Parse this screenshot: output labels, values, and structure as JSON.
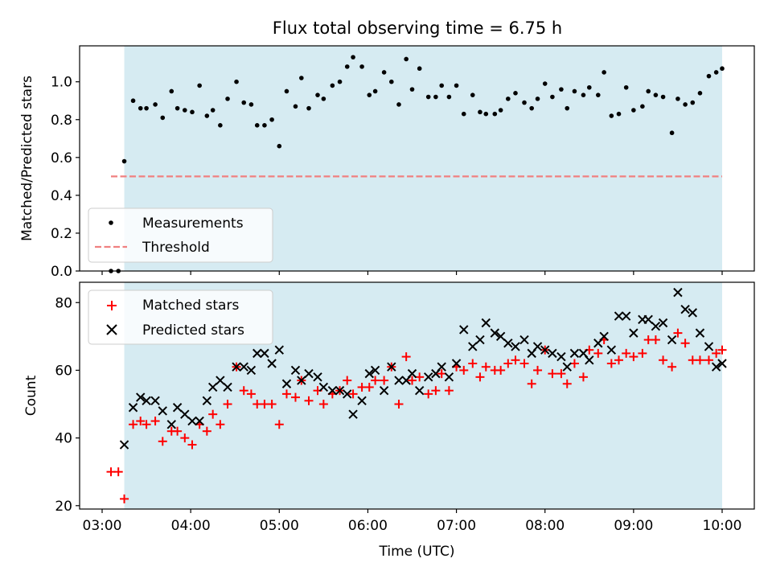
{
  "title": "Flux total observing time = 6.75 h",
  "colors": {
    "span": "#add8e6",
    "measurement": "#000000",
    "threshold": "#f08080",
    "matched": "#ff0000",
    "predicted": "#000000"
  },
  "chart_data": [
    {
      "type": "scatter",
      "ylabel": "Matched/Predicted stars",
      "xlabel": "",
      "ylim": [
        0.0,
        1.19
      ],
      "yticks": [
        "0.0",
        "0.2",
        "0.4",
        "0.6",
        "0.8",
        "1.0"
      ],
      "shaded_span": [
        "03:15",
        "10:00"
      ],
      "legend_position": "lower-left",
      "threshold": {
        "name": "Threshold",
        "y": 0.5,
        "x_range": [
          "03:06",
          "10:00"
        ]
      },
      "series": [
        {
          "name": "Measurements",
          "x": [
            "03:06",
            "03:11",
            "03:15",
            "03:21",
            "03:26",
            "03:30",
            "03:36",
            "03:41",
            "03:47",
            "03:51",
            "03:56",
            "04:01",
            "04:06",
            "04:11",
            "04:15",
            "04:20",
            "04:25",
            "04:31",
            "04:36",
            "04:41",
            "04:45",
            "04:50",
            "04:55",
            "05:00",
            "05:05",
            "05:11",
            "05:15",
            "05:20",
            "05:26",
            "05:30",
            "05:36",
            "05:41",
            "05:46",
            "05:50",
            "05:56",
            "06:01",
            "06:05",
            "06:11",
            "06:16",
            "06:21",
            "06:26",
            "06:30",
            "06:35",
            "06:41",
            "06:46",
            "06:50",
            "06:55",
            "07:00",
            "07:05",
            "07:11",
            "07:16",
            "07:20",
            "07:26",
            "07:30",
            "07:35",
            "07:40",
            "07:46",
            "07:51",
            "07:55",
            "08:00",
            "08:05",
            "08:11",
            "08:15",
            "08:20",
            "08:26",
            "08:30",
            "08:36",
            "08:40",
            "08:45",
            "08:50",
            "08:55",
            "09:00",
            "09:06",
            "09:10",
            "09:15",
            "09:20",
            "09:26",
            "09:30",
            "09:35",
            "09:40",
            "09:45",
            "09:51",
            "09:56",
            "10:00"
          ],
          "y": [
            0.0,
            0.0,
            0.58,
            0.9,
            0.86,
            0.86,
            0.88,
            0.81,
            0.95,
            0.86,
            0.85,
            0.84,
            0.98,
            0.82,
            0.85,
            0.77,
            0.91,
            1.0,
            0.89,
            0.88,
            0.77,
            0.77,
            0.8,
            0.66,
            0.95,
            0.87,
            1.02,
            0.86,
            0.93,
            0.91,
            0.98,
            1.0,
            1.08,
            1.13,
            1.08,
            0.93,
            0.95,
            1.05,
            1.0,
            0.88,
            1.12,
            0.96,
            1.07,
            0.92,
            0.92,
            0.98,
            0.92,
            0.98,
            0.83,
            0.93,
            0.84,
            0.83,
            0.83,
            0.85,
            0.91,
            0.94,
            0.89,
            0.86,
            0.91,
            0.99,
            0.92,
            0.96,
            0.86,
            0.95,
            0.93,
            0.97,
            0.93,
            1.05,
            0.82,
            0.83,
            0.97,
            0.85,
            0.87,
            0.95,
            0.93,
            0.92,
            0.73,
            0.91,
            0.88,
            0.89,
            0.94,
            1.03,
            1.05,
            1.07
          ]
        }
      ]
    },
    {
      "type": "scatter",
      "ylabel": "Count",
      "xlabel": "Time (UTC)",
      "ylim": [
        19,
        86
      ],
      "yticks": [
        "20",
        "40",
        "60",
        "80"
      ],
      "xticks": [
        "03:00",
        "04:00",
        "05:00",
        "06:00",
        "07:00",
        "08:00",
        "09:00",
        "10:00"
      ],
      "shaded_span": [
        "03:15",
        "10:00"
      ],
      "legend_position": "upper-left",
      "series": [
        {
          "name": "Matched stars",
          "marker": "+",
          "x": [
            "03:06",
            "03:11",
            "03:15",
            "03:21",
            "03:26",
            "03:30",
            "03:36",
            "03:41",
            "03:47",
            "03:51",
            "03:56",
            "04:01",
            "04:06",
            "04:11",
            "04:15",
            "04:20",
            "04:25",
            "04:31",
            "04:36",
            "04:41",
            "04:45",
            "04:50",
            "04:55",
            "05:00",
            "05:05",
            "05:11",
            "05:15",
            "05:20",
            "05:26",
            "05:30",
            "05:36",
            "05:41",
            "05:46",
            "05:50",
            "05:56",
            "06:01",
            "06:05",
            "06:11",
            "06:16",
            "06:21",
            "06:26",
            "06:30",
            "06:35",
            "06:41",
            "06:46",
            "06:50",
            "06:55",
            "07:00",
            "07:05",
            "07:11",
            "07:16",
            "07:20",
            "07:26",
            "07:30",
            "07:35",
            "07:40",
            "07:46",
            "07:51",
            "07:55",
            "08:00",
            "08:05",
            "08:11",
            "08:15",
            "08:20",
            "08:26",
            "08:30",
            "08:36",
            "08:40",
            "08:45",
            "08:50",
            "08:55",
            "09:00",
            "09:06",
            "09:10",
            "09:15",
            "09:20",
            "09:26",
            "09:30",
            "09:35",
            "09:40",
            "09:45",
            "09:51",
            "09:56",
            "10:00"
          ],
          "y": [
            30,
            30,
            22,
            44,
            45,
            44,
            45,
            39,
            42,
            42,
            40,
            38,
            44,
            42,
            47,
            44,
            50,
            61,
            54,
            53,
            50,
            50,
            50,
            44,
            53,
            52,
            57,
            51,
            54,
            50,
            53,
            54,
            57,
            53,
            55,
            55,
            57,
            57,
            61,
            50,
            64,
            57,
            58,
            53,
            54,
            59,
            54,
            61,
            60,
            62,
            58,
            61,
            60,
            60,
            62,
            63,
            62,
            56,
            60,
            66,
            59,
            59,
            56,
            62,
            58,
            66,
            65,
            69,
            62,
            63,
            65,
            64,
            65,
            69,
            69,
            63,
            61,
            71,
            68,
            63,
            63,
            63,
            65,
            66
          ]
        },
        {
          "name": "Predicted stars",
          "marker": "x",
          "x": [
            "03:15",
            "03:21",
            "03:26",
            "03:30",
            "03:36",
            "03:41",
            "03:47",
            "03:51",
            "03:56",
            "04:01",
            "04:06",
            "04:11",
            "04:15",
            "04:20",
            "04:25",
            "04:31",
            "04:36",
            "04:41",
            "04:45",
            "04:50",
            "04:55",
            "05:00",
            "05:05",
            "05:11",
            "05:15",
            "05:20",
            "05:26",
            "05:30",
            "05:36",
            "05:41",
            "05:46",
            "05:50",
            "05:56",
            "06:01",
            "06:05",
            "06:11",
            "06:16",
            "06:21",
            "06:26",
            "06:30",
            "06:35",
            "06:41",
            "06:46",
            "06:50",
            "06:55",
            "07:00",
            "07:05",
            "07:11",
            "07:16",
            "07:20",
            "07:26",
            "07:30",
            "07:35",
            "07:40",
            "07:46",
            "07:51",
            "07:55",
            "08:00",
            "08:05",
            "08:11",
            "08:15",
            "08:20",
            "08:26",
            "08:30",
            "08:36",
            "08:40",
            "08:45",
            "08:50",
            "08:55",
            "09:00",
            "09:06",
            "09:10",
            "09:15",
            "09:20",
            "09:26",
            "09:30",
            "09:35",
            "09:40",
            "09:45",
            "09:51",
            "09:56",
            "10:00"
          ],
          "y": [
            38,
            49,
            52,
            51,
            51,
            48,
            44,
            49,
            47,
            45,
            45,
            51,
            55,
            57,
            55,
            61,
            61,
            60,
            65,
            65,
            62,
            66,
            56,
            60,
            57,
            59,
            58,
            55,
            54,
            54,
            53,
            47,
            51,
            59,
            60,
            54,
            61,
            57,
            57,
            59,
            54,
            58,
            59,
            61,
            58,
            62,
            72,
            67,
            69,
            74,
            71,
            70,
            68,
            67,
            69,
            65,
            67,
            66,
            65,
            64,
            61,
            65,
            65,
            63,
            68,
            70,
            66,
            76,
            76,
            71,
            75,
            75,
            73,
            74,
            69,
            83,
            78,
            77,
            71,
            67,
            61,
            62
          ]
        }
      ]
    }
  ]
}
